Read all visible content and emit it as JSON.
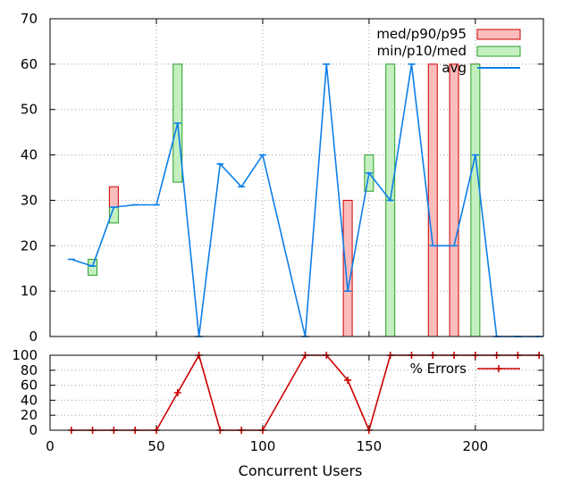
{
  "chart_data": [
    {
      "type": "bar",
      "panel": "top",
      "ylim": [
        0,
        70
      ],
      "xlim": [
        0,
        232
      ],
      "y_ticks": [
        "0",
        "10",
        "20",
        "30",
        "40",
        "50",
        "60",
        "70"
      ],
      "grid": true,
      "legend": {
        "placement": "top-right",
        "entries": [
          {
            "label": "med/p90/p95",
            "kind": "box",
            "color": "#fbbcbc",
            "stroke": "#cc0000"
          },
          {
            "label": "min/p10/med",
            "kind": "box",
            "color": "#c4f0c0",
            "stroke": "#2a9d2a"
          },
          {
            "label": "avg",
            "kind": "line",
            "color": "#0d7ee8"
          }
        ]
      },
      "series": [
        {
          "name": "med/p90/p95",
          "color": "#fbbcbc",
          "stroke": "#cc0000",
          "boxes": [
            {
              "x": 30,
              "low": 28.5,
              "high": 33
            },
            {
              "x": 140,
              "low": 0,
              "high": 30
            },
            {
              "x": 180,
              "low": 0,
              "high": 60
            },
            {
              "x": 190,
              "low": 0,
              "high": 60
            },
            {
              "x": 200,
              "low": 60,
              "high": 60
            }
          ]
        },
        {
          "name": "min/p10/med",
          "color": "#c4f0c0",
          "stroke": "#2a9d2a",
          "boxes": [
            {
              "x": 20,
              "low": 13.5,
              "high": 17
            },
            {
              "x": 30,
              "low": 25,
              "high": 28.5
            },
            {
              "x": 60,
              "low": 34,
              "high": 60
            },
            {
              "x": 150,
              "low": 32,
              "high": 40
            },
            {
              "x": 160,
              "low": 0,
              "high": 60
            },
            {
              "x": 200,
              "low": 0,
              "high": 60
            }
          ]
        },
        {
          "name": "avg",
          "color": "#0d7ee8",
          "x": [
            10,
            20,
            30,
            40,
            50,
            60,
            70,
            80,
            90,
            100,
            120,
            130,
            140,
            150,
            160,
            170,
            180,
            190,
            200,
            210,
            220,
            230
          ],
          "y": [
            17,
            15.5,
            28.5,
            29,
            29,
            47,
            0,
            38,
            33,
            40,
            0,
            60,
            10,
            36,
            30,
            60,
            20,
            20,
            40,
            0,
            0,
            0
          ]
        }
      ]
    },
    {
      "type": "line",
      "panel": "bottom",
      "ylim": [
        0,
        100
      ],
      "xlim": [
        0,
        232
      ],
      "y_ticks": [
        "0",
        "20",
        "40",
        "60",
        "80",
        "100"
      ],
      "x_ticks": [
        {
          "value": 0,
          "label": "0"
        },
        {
          "value": 50,
          "label": "50"
        },
        {
          "value": 100,
          "label": "100"
        },
        {
          "value": 150,
          "label": "150"
        },
        {
          "value": 200,
          "label": "200"
        }
      ],
      "xlabel": "Concurrent Users",
      "grid": true,
      "legend": {
        "placement": "top-right",
        "entries": [
          {
            "label": "% Errors",
            "kind": "line-point",
            "color": "#cc0000"
          }
        ]
      },
      "series": [
        {
          "name": "% Errors",
          "color": "#cc0000",
          "x": [
            10,
            20,
            30,
            40,
            50,
            60,
            70,
            80,
            90,
            100,
            120,
            130,
            140,
            150,
            160,
            170,
            180,
            190,
            200,
            210,
            220,
            230
          ],
          "y": [
            0,
            0,
            0,
            0,
            0,
            50,
            100,
            0,
            0,
            0,
            100,
            100,
            66.7,
            0,
            100,
            100,
            100,
            100,
            100,
            100,
            100,
            100
          ]
        }
      ]
    }
  ]
}
